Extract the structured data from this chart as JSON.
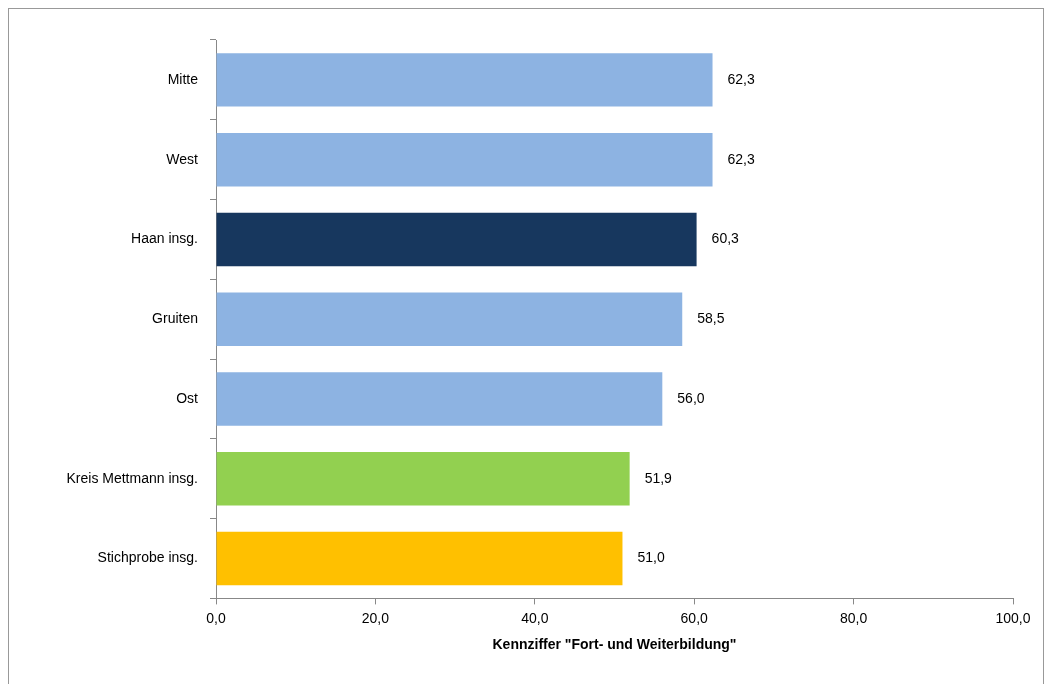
{
  "chart_data": {
    "type": "bar",
    "orientation": "horizontal",
    "xlabel": "Kennziffer \"Fort- und Weiterbildung\"",
    "categories": [
      "Mitte",
      "West",
      "Haan insg.",
      "Gruiten",
      "Ost",
      "Kreis Mettmann insg.",
      "Stichprobe insg."
    ],
    "values": [
      62.3,
      62.3,
      60.3,
      58.5,
      56.0,
      51.9,
      51.0
    ],
    "value_labels": [
      "62,3",
      "62,3",
      "60,3",
      "58,5",
      "56,0",
      "51,9",
      "51,0"
    ],
    "colors": [
      "#8db3e2",
      "#8db3e2",
      "#17375e",
      "#8db3e2",
      "#8db3e2",
      "#92d050",
      "#ffc000"
    ],
    "xlim": [
      0,
      100
    ],
    "xticks": [
      {
        "value": 0,
        "label": "0,0"
      },
      {
        "value": 20,
        "label": "20,0"
      },
      {
        "value": 40,
        "label": "40,0"
      },
      {
        "value": 60,
        "label": "60,0"
      },
      {
        "value": 80,
        "label": "80,0"
      },
      {
        "value": 100,
        "label": "100,0"
      }
    ],
    "grid": false,
    "legend": false
  }
}
